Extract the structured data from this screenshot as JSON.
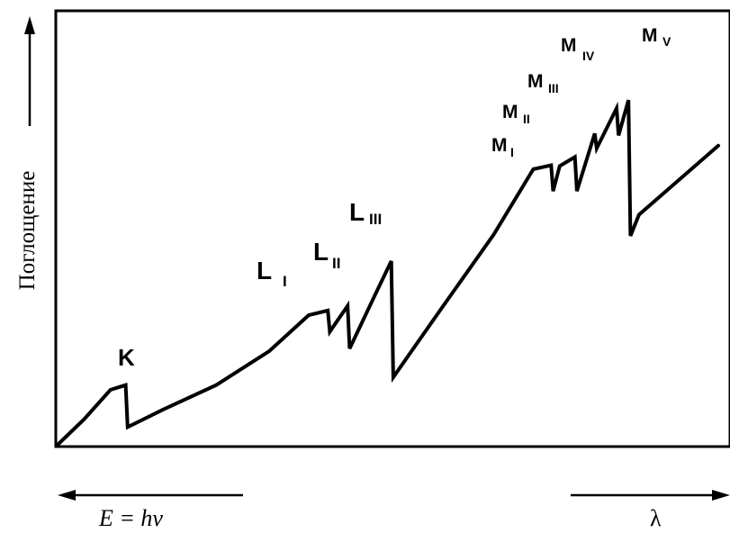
{
  "chart_data": {
    "type": "line",
    "title": "",
    "ylabel": "Поглощение",
    "xlabel_left": "E = hν",
    "xlabel_right": "λ",
    "grid": false,
    "legend": "none",
    "xlim": [
      0,
      100
    ],
    "ylim": [
      0,
      100
    ],
    "x_direction": "wavelength increases to the right, energy increases to the left",
    "series": [
      {
        "x": [
          0,
          4,
          8,
          10.3,
          10.6,
          16,
          24,
          32,
          38,
          40.9,
          41.2,
          43.9,
          44.2,
          48,
          50.5,
          50.8,
          58,
          66,
          72,
          74.7,
          75.0,
          76,
          78.3,
          78.6,
          81.3,
          81.6,
          84.6,
          84.9,
          86.4,
          86.7,
          88,
          100
        ],
        "y": [
          0,
          6.5,
          14,
          15.2,
          4.5,
          9,
          15.2,
          23.8,
          33,
          34.2,
          28.8,
          35.4,
          24.5,
          38,
          46.8,
          17.2,
          34.5,
          53.5,
          70.2,
          71.2,
          64.6,
          71,
          73.3,
          64.6,
          79.3,
          75.5,
          85.7,
          78.8,
          87.8,
          53.2,
          58.6,
          76.2
        ]
      }
    ],
    "annotations": [
      "K",
      "L",
      "I",
      "L",
      "II",
      "L",
      "III",
      "M",
      "I",
      "M",
      "II",
      "M",
      "III",
      "M",
      "IV",
      "M",
      "V"
    ]
  },
  "edges": [
    {
      "main": "K",
      "sub": ""
    },
    {
      "main": "L",
      "sub": "I"
    },
    {
      "main": "L",
      "sub": "II"
    },
    {
      "main": "L",
      "sub": "III"
    },
    {
      "main": "M",
      "sub": "I"
    },
    {
      "main": "M",
      "sub": "II"
    },
    {
      "main": "M",
      "sub": "III"
    },
    {
      "main": "M",
      "sub": "IV"
    },
    {
      "main": "M",
      "sub": "V"
    }
  ]
}
